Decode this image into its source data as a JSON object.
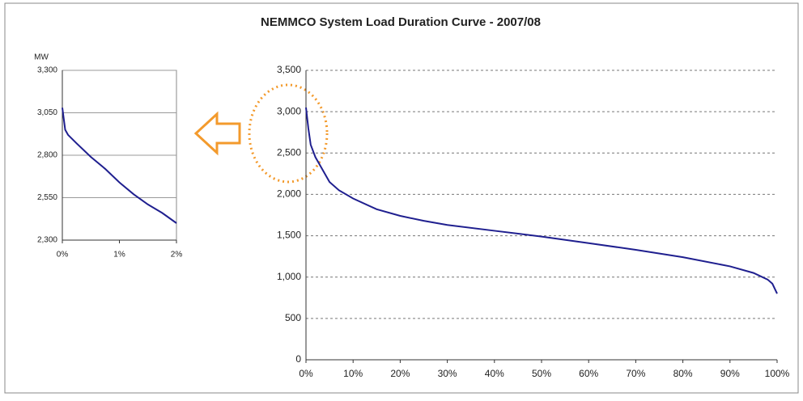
{
  "chart_data": [
    {
      "type": "line",
      "title": "NEMMCO System Load Duration Curve - 2007/08",
      "x": [
        0,
        0.5,
        1,
        2,
        3,
        5,
        7,
        10,
        15,
        20,
        25,
        30,
        40,
        50,
        60,
        70,
        80,
        90,
        95,
        98,
        99,
        100
      ],
      "series": [
        {
          "color": "#1f1f8f",
          "values": [
            3050,
            2800,
            2600,
            2450,
            2350,
            2150,
            2050,
            1950,
            1820,
            1740,
            1680,
            1630,
            1560,
            1490,
            1410,
            1330,
            1240,
            1130,
            1050,
            970,
            920,
            800
          ]
        }
      ],
      "xlim": [
        0,
        100
      ],
      "xticks": [
        {
          "value": 0,
          "label": "0%"
        },
        {
          "value": 10,
          "label": "10%"
        },
        {
          "value": 20,
          "label": "20%"
        },
        {
          "value": 30,
          "label": "30%"
        },
        {
          "value": 40,
          "label": "40%"
        },
        {
          "value": 50,
          "label": "50%"
        },
        {
          "value": 60,
          "label": "60%"
        },
        {
          "value": 70,
          "label": "70%"
        },
        {
          "value": 80,
          "label": "80%"
        },
        {
          "value": 90,
          "label": "90%"
        },
        {
          "value": 100,
          "label": "100%"
        }
      ],
      "ylim": [
        0,
        3500
      ],
      "yticks": [
        0,
        500,
        {
          "value": 1000,
          "label": "1,000"
        },
        {
          "value": 1500,
          "label": "1,500"
        },
        {
          "value": 2000,
          "label": "2,000"
        },
        {
          "value": 2500,
          "label": "2,500"
        },
        {
          "value": 3000,
          "label": "3,000"
        },
        {
          "value": 3500,
          "label": "3,500"
        }
      ],
      "grid": true,
      "grid_style": "dashed"
    },
    {
      "type": "line",
      "ylabel": "MW",
      "x": [
        0,
        0.05,
        0.1,
        0.25,
        0.5,
        0.75,
        1,
        1.25,
        1.5,
        1.75,
        2
      ],
      "series": [
        {
          "color": "#1f1f8f",
          "values": [
            3080,
            2950,
            2920,
            2870,
            2790,
            2720,
            2640,
            2570,
            2510,
            2460,
            2400
          ]
        }
      ],
      "xlim": [
        0,
        2
      ],
      "xticks": [
        {
          "value": 0,
          "label": "0%"
        },
        {
          "value": 1,
          "label": "1%"
        },
        {
          "value": 2,
          "label": "2%"
        }
      ],
      "ylim": [
        2300,
        3300
      ],
      "yticks": [
        {
          "value": 2300,
          "label": "2,300"
        },
        {
          "value": 2550,
          "label": "2,550"
        },
        {
          "value": 2800,
          "label": "2,800"
        },
        {
          "value": 3050,
          "label": "3,050"
        },
        {
          "value": 3300,
          "label": "3,300"
        }
      ],
      "grid": true,
      "grid_style": "solid"
    }
  ]
}
